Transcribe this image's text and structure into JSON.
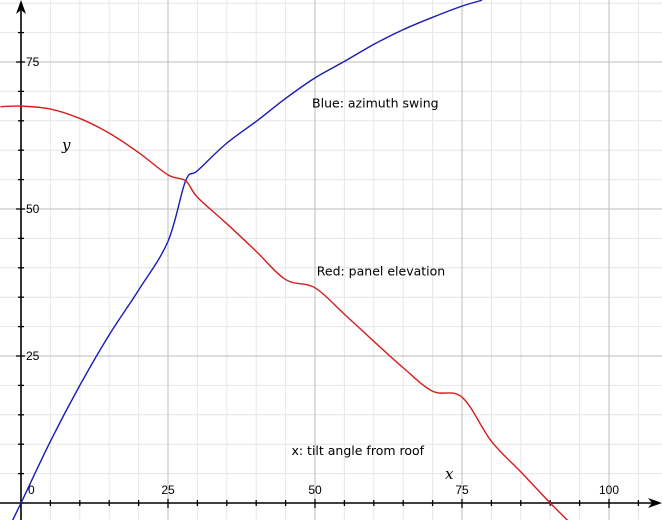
{
  "chart_data": {
    "type": "line",
    "title": "",
    "xlabel": "x",
    "ylabel": "y",
    "xlim": [
      -3.5,
      109
    ],
    "ylim": [
      -3,
      85.5
    ],
    "grid": true,
    "minor_grid_step": 5,
    "major_grid_step": 25,
    "x_ticks": [
      0,
      25,
      50,
      75,
      100
    ],
    "x_tick_labels": [
      "0",
      "25",
      "50",
      "75",
      "100"
    ],
    "y_ticks": [
      25,
      50,
      75
    ],
    "y_tick_labels": [
      "25",
      "50",
      "75"
    ],
    "legend_position": "inline annotations",
    "annotations": [
      {
        "id": "blue",
        "text": "Blue: azimuth swing",
        "x": 49.5,
        "y": 67.3
      },
      {
        "id": "red",
        "text": "Red: panel elevation",
        "x": 50.3,
        "y": 38.7
      },
      {
        "id": "xdesc",
        "text": "x: tilt angle from roof",
        "x": 46,
        "y": 8.2
      }
    ],
    "series": [
      {
        "name": "Blue: azimuth swing",
        "color": "#1a1ab8",
        "x": [
          -3,
          0,
          5,
          10,
          15,
          20,
          25,
          28,
          30,
          35,
          40,
          45,
          50,
          55,
          60,
          65,
          70,
          75,
          78.4
        ],
        "y": [
          -6.2,
          0,
          10.5,
          20,
          28.6,
          36.2,
          44.5,
          54.8,
          56.5,
          61.2,
          64.9,
          68.8,
          72.3,
          75.1,
          78,
          80.5,
          82.6,
          84.5,
          85.5
        ]
      },
      {
        "name": "Red: panel elevation",
        "color": "#d41e1e",
        "x": [
          -3.5,
          0,
          5,
          10,
          15,
          20,
          25,
          28,
          30,
          35,
          40,
          45,
          50,
          55,
          60,
          65,
          70,
          75,
          80,
          85,
          90,
          93
        ],
        "y": [
          67.4,
          67.5,
          67,
          65.4,
          62.9,
          59.6,
          55.8,
          54.8,
          52,
          47.5,
          42.8,
          38,
          36.6,
          32.1,
          27.5,
          23,
          19,
          18,
          10.5,
          5.3,
          0,
          -3
        ]
      }
    ]
  },
  "labels": {
    "x_axis_var": "x",
    "y_axis_var": "y"
  },
  "colors": {
    "grid_minor": "#e6e6e6",
    "grid_major": "#bdbdbd",
    "axis": "#000000"
  }
}
